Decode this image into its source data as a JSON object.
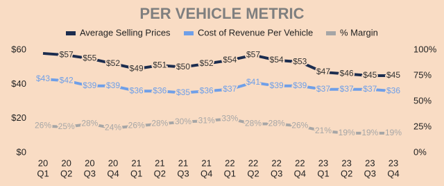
{
  "chart_data": {
    "type": "line",
    "title": "PER VEHICLE METRIC",
    "categories": [
      [
        "20",
        "Q1"
      ],
      [
        "20",
        "Q2"
      ],
      [
        "20",
        "Q3"
      ],
      [
        "20",
        "Q4"
      ],
      [
        "21",
        "Q1"
      ],
      [
        "21",
        "Q2"
      ],
      [
        "21",
        "Q3"
      ],
      [
        "21",
        "Q4"
      ],
      [
        "22",
        "Q1"
      ],
      [
        "22",
        "Q2"
      ],
      [
        "22",
        "Q3"
      ],
      [
        "22",
        "Q4"
      ],
      [
        "23",
        "Q1"
      ],
      [
        "23",
        "Q2"
      ],
      [
        "23",
        "Q3"
      ],
      [
        "23",
        "Q4"
      ]
    ],
    "series": [
      {
        "name": "Average Selling Prices",
        "color": "#1c2d4f",
        "values": [
          58,
          57,
          55,
          52,
          49,
          51,
          50,
          52,
          54,
          57,
          54,
          53,
          47,
          46,
          45,
          45
        ],
        "value_labels": [
          null,
          "$57",
          "$55",
          "$52",
          "$49",
          "$51",
          "$50",
          "$52",
          "$54",
          "$57",
          "$54",
          "$53",
          "$47",
          "$46",
          "$45",
          "$45"
        ]
      },
      {
        "name": "Cost of Revenue Per Vehicle",
        "color": "#6f9fe8",
        "values": [
          43,
          42,
          39,
          39,
          36,
          36,
          35,
          36,
          37,
          41,
          39,
          39,
          37,
          37,
          37,
          36
        ],
        "value_labels": [
          "$43",
          "$42",
          "$39",
          "$39",
          "$36",
          "$36",
          "$35",
          "$36",
          "$37",
          "$41",
          "$39",
          "$39",
          "$37",
          "$37",
          "$37",
          "$36"
        ]
      },
      {
        "name": "% Margin",
        "color": "#a6a6a6",
        "axis": "y2",
        "values": [
          26,
          25,
          28,
          24,
          26,
          28,
          30,
          31,
          33,
          28,
          28,
          26,
          21,
          19,
          19,
          19
        ],
        "value_labels": [
          "26%",
          "25%",
          "28%",
          "24%",
          "26%",
          "28%",
          "30%",
          "31%",
          "33%",
          "28%",
          "28%",
          "26%",
          "21%",
          "19%",
          "19%",
          "19%"
        ]
      }
    ],
    "ylim": [
      0,
      60
    ],
    "yticks": [
      {
        "value": 0,
        "label": "$0"
      },
      {
        "value": 20,
        "label": "$20"
      },
      {
        "value": 40,
        "label": "$40"
      },
      {
        "value": 60,
        "label": "$60"
      }
    ],
    "y2lim": [
      0,
      100
    ],
    "y2ticks": [
      {
        "value": 0,
        "label": "0%"
      },
      {
        "value": 25,
        "label": "25%"
      },
      {
        "value": 50,
        "label": "50%"
      },
      {
        "value": 75,
        "label": "75%"
      },
      {
        "value": 100,
        "label": "100%"
      }
    ],
    "grid": false,
    "legend": "top"
  }
}
